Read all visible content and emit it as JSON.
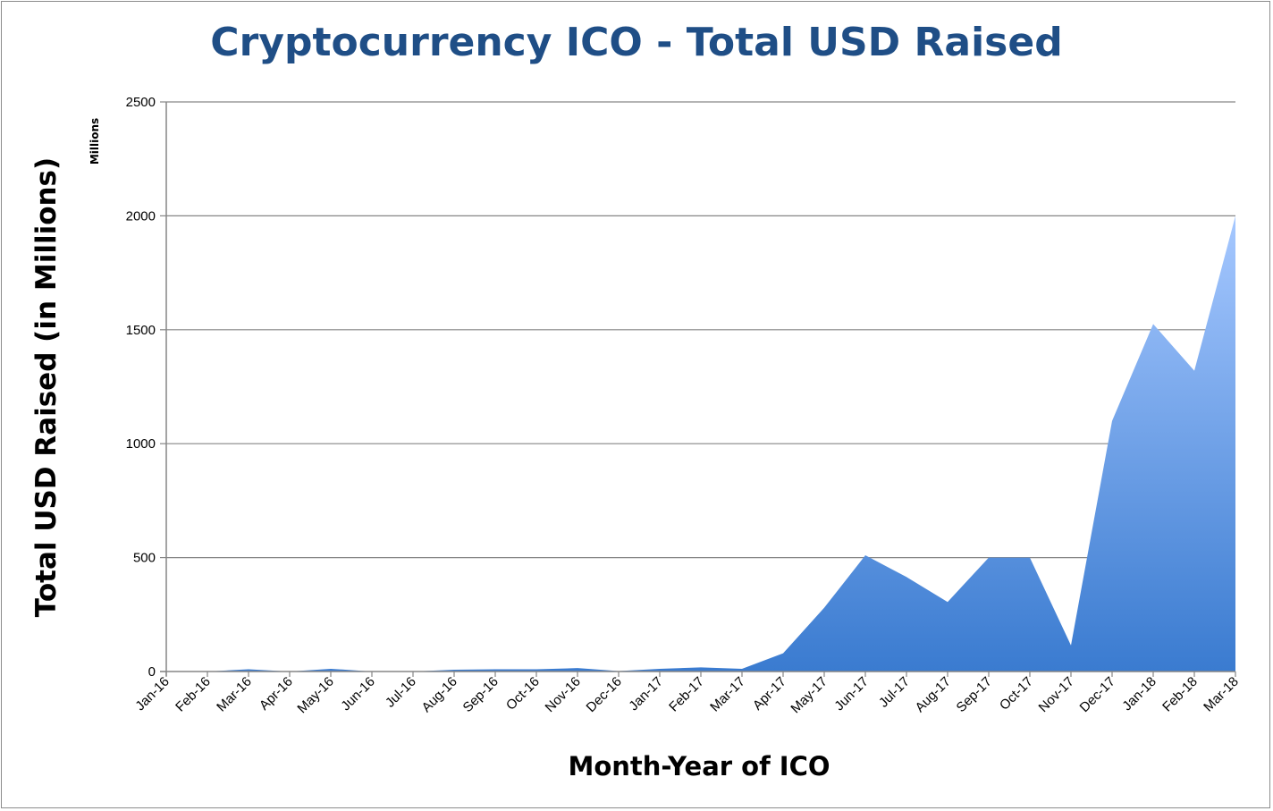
{
  "chart_data": {
    "type": "area",
    "title": "Cryptocurrency ICO - Total USD Raised",
    "xlabel": "Month-Year of ICO",
    "ylabel": "Total USD Raised (in Millions)",
    "y_unit_label": "Millions",
    "categories": [
      "Jan-16",
      "Feb-16",
      "Mar-16",
      "Apr-16",
      "May-16",
      "Jun-16",
      "Jul-16",
      "Aug-16",
      "Sep-16",
      "Oct-16",
      "Nov-16",
      "Dec-16",
      "Jan-17",
      "Feb-17",
      "Mar-17",
      "Apr-17",
      "May-17",
      "Jun-17",
      "Jul-17",
      "Aug-17",
      "Sep-17",
      "Oct-17",
      "Nov-17",
      "Dec-17",
      "Jan-18",
      "Feb-18",
      "Mar-18"
    ],
    "values": [
      0,
      0,
      10,
      0,
      12,
      0,
      0,
      8,
      10,
      10,
      15,
      2,
      12,
      18,
      12,
      80,
      280,
      510,
      415,
      305,
      500,
      500,
      115,
      1100,
      1525,
      1320,
      2000
    ],
    "ylim": [
      0,
      2500
    ],
    "yticks": [
      "0",
      "500",
      "1000",
      "1500",
      "2000",
      "2500"
    ],
    "ytick_values": [
      0,
      500,
      1000,
      1500,
      2000,
      2500
    ],
    "grid": true,
    "legend": "none",
    "colors": {
      "fill_top": "#a6c8ff",
      "fill_bottom": "#3a7bd0",
      "title": "#1f4e86",
      "grid": "#868686"
    }
  }
}
